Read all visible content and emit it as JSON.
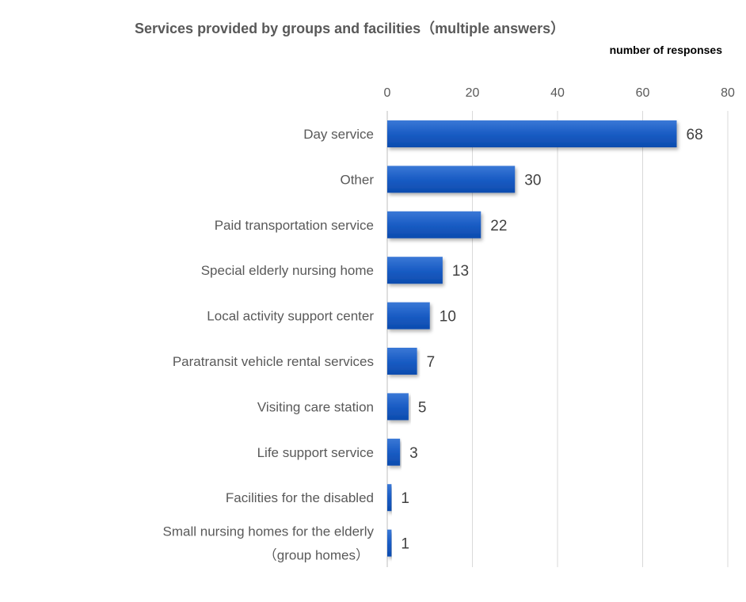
{
  "chart_data": {
    "type": "bar",
    "orientation": "horizontal",
    "title": "Services provided by groups and facilities（multiple answers）",
    "xlabel": "number of responses",
    "ylabel": "",
    "xlim": [
      0,
      80
    ],
    "xticks": [
      "0",
      "20",
      "40",
      "60",
      "80"
    ],
    "xaxis_position": "top",
    "grid": true,
    "bar_color": "#1a5cc4",
    "categories": [
      [
        "Day service"
      ],
      [
        "Other"
      ],
      [
        "Paid transportation service"
      ],
      [
        "Special elderly nursing home"
      ],
      [
        "Local activity support center"
      ],
      [
        "Paratransit vehicle rental services"
      ],
      [
        "Visiting care station"
      ],
      [
        "Life support service"
      ],
      [
        "Facilities for the disabled"
      ],
      [
        "Small nursing homes for the elderly",
        "（group homes）"
      ]
    ],
    "values": [
      68,
      30,
      22,
      13,
      10,
      7,
      5,
      3,
      1,
      1
    ]
  }
}
